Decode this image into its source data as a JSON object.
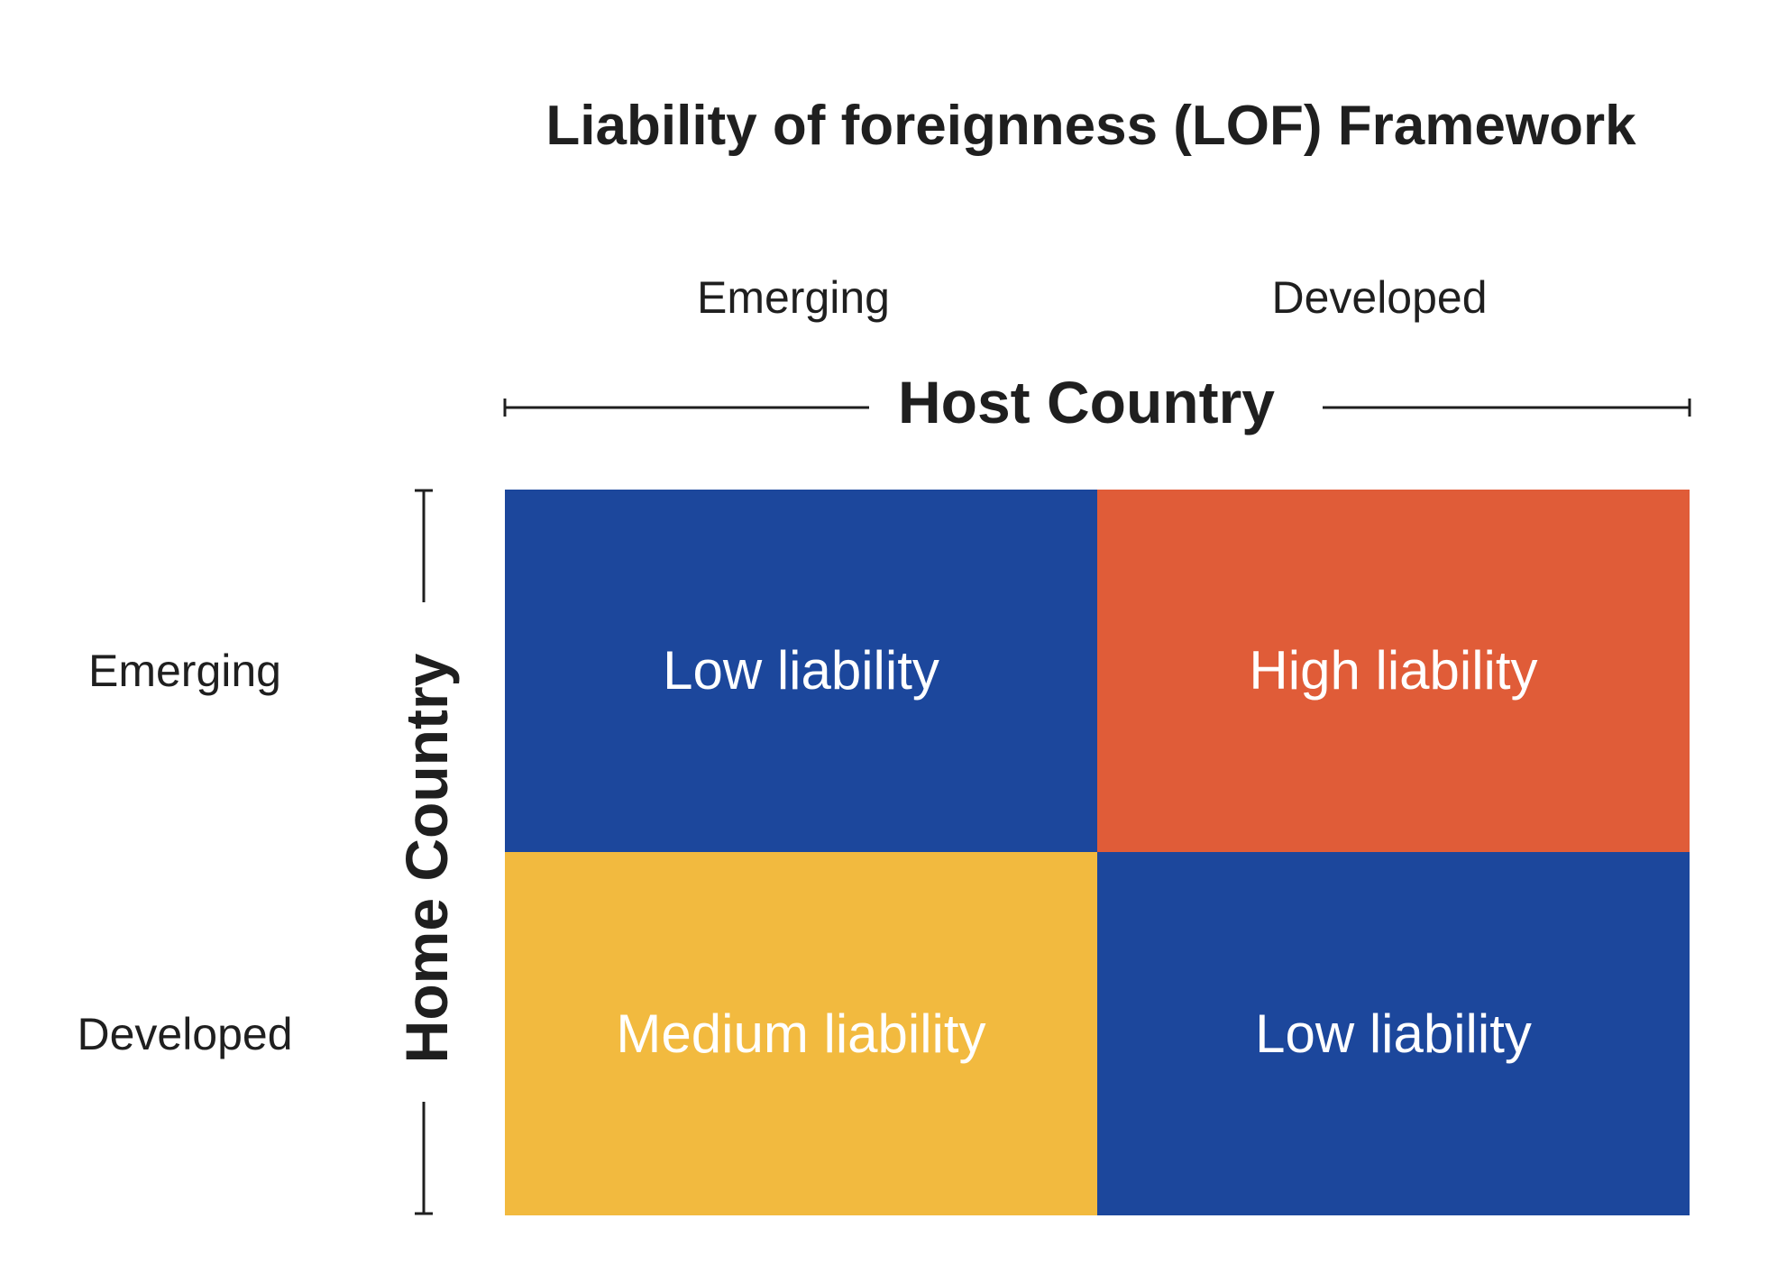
{
  "title": "Liability of foreignness (LOF) Framework",
  "host_axis": {
    "title": "Host Country",
    "columns": [
      "Emerging",
      "Developed"
    ]
  },
  "home_axis": {
    "title": "Home Country",
    "rows": [
      "Emerging",
      "Developed"
    ]
  },
  "matrix": {
    "cells": [
      {
        "text": "Low liability",
        "color": "#1c479c"
      },
      {
        "text": "High liability",
        "color": "#e05c38"
      },
      {
        "text": "Medium liability",
        "color": "#f2ba3f"
      },
      {
        "text": "Low liability",
        "color": "#1c479c"
      }
    ]
  },
  "colors": {
    "text": "#1f1f1f",
    "cell_text": "#ffffff",
    "axis_line": "#1f1f1f",
    "background": "#ffffff"
  }
}
